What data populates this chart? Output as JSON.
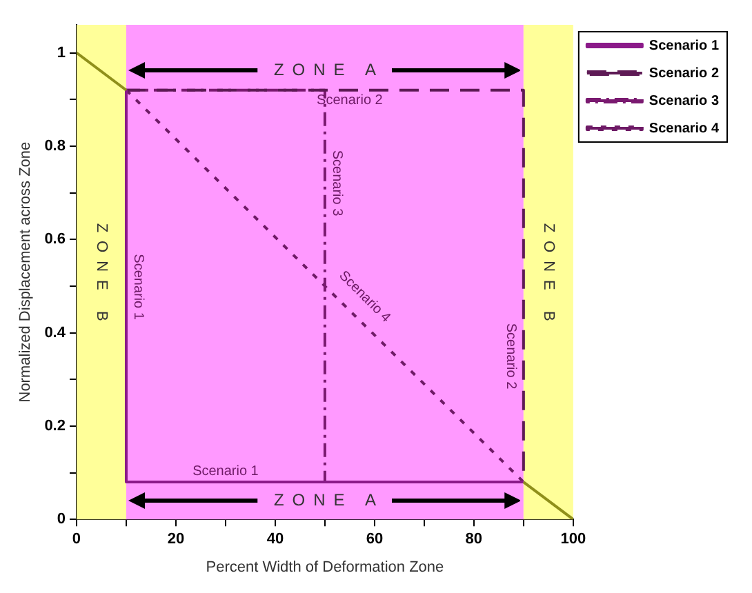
{
  "chart_data": {
    "type": "line",
    "xlabel": "Percent Width of Deformation Zone",
    "ylabel": "Normalized Displacement across Zone",
    "xlim": [
      0,
      100
    ],
    "xticks": [
      0,
      {
        "value": 10,
        "label": null
      },
      20,
      {
        "value": 30,
        "label": null
      },
      40,
      {
        "value": 50,
        "label": null
      },
      60,
      {
        "value": 70,
        "label": null
      },
      80,
      {
        "value": 90,
        "label": null
      },
      100
    ],
    "ylim": [
      0,
      1.06
    ],
    "yticks": [
      0,
      {
        "value": 0.1,
        "label": null
      },
      0.2,
      {
        "value": 0.3,
        "label": null
      },
      0.4,
      {
        "value": 0.5,
        "label": null
      },
      0.6,
      {
        "value": 0.7,
        "label": null
      },
      0.8,
      {
        "value": 0.9,
        "label": null
      },
      1
    ],
    "grid": false,
    "legend": "top right",
    "bands": [
      {
        "axis": "x",
        "from": 0,
        "to": 10,
        "color": "#ffff99",
        "label": "ZONE B"
      },
      {
        "axis": "x",
        "from": 10,
        "to": 90,
        "color": "#ff99ff",
        "label": "ZONE A"
      },
      {
        "axis": "x",
        "from": 90,
        "to": 100,
        "color": "#ffff99",
        "label": "ZONE B"
      }
    ],
    "series": [
      {
        "color": "#8f8f1a",
        "x": [
          0,
          10,
          50,
          90,
          100
        ],
        "values": [
          1,
          0.92,
          null,
          0.08,
          0
        ],
        "line_style": "solid"
      },
      {
        "name": "Scenario 1",
        "color": "#8b1a89",
        "x": [
          10,
          10,
          90
        ],
        "values": [
          0.92,
          0.08,
          0.08
        ],
        "line_style": "solid"
      },
      {
        "name": "Scenario 2",
        "color": "#5e1a55",
        "x": [
          10,
          90,
          90
        ],
        "values": [
          0.92,
          0.92,
          0.08
        ],
        "line_style": "dashed"
      },
      {
        "name": "Scenario 3",
        "color": "#7a1a70",
        "x": [
          10,
          50,
          50,
          90
        ],
        "values": [
          0.92,
          0.92,
          0.08,
          0.08
        ],
        "line_style": "dashdot"
      },
      {
        "name": "Scenario 4",
        "color": "#6e1a66",
        "x": [
          10,
          90
        ],
        "values": [
          0.92,
          0.08
        ],
        "line_style": "dotted"
      }
    ],
    "annotations": [
      "ZONE A",
      "Scenario 1",
      "Scenario 1",
      "Scenario 2",
      "Scenario 2",
      "Scenario 3",
      "Scenario 4"
    ]
  }
}
